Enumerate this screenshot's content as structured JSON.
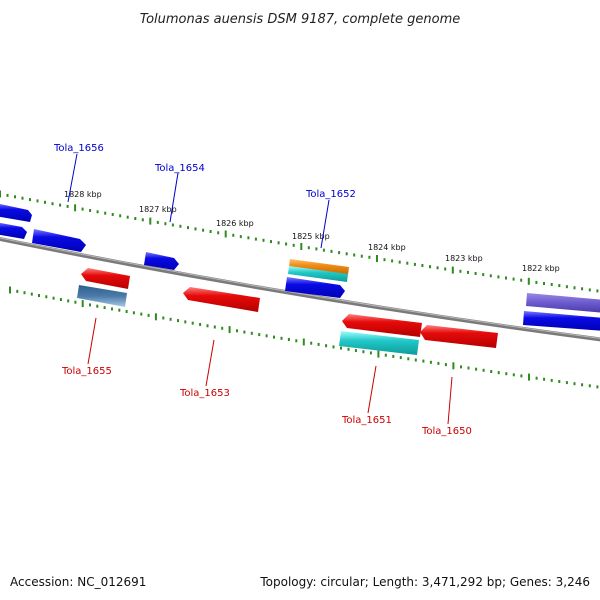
{
  "title": "Tolumonas auensis DSM 9187, complete genome",
  "footer": {
    "accession": "Accession: NC_012691",
    "summary": "Topology: circular; Length: 3,471,292 bp; Genes: 3,246"
  },
  "ruler": {
    "labels": [
      "1828 kbp",
      "1827 kbp",
      "1826 kbp",
      "1825 kbp",
      "1824 kbp",
      "1823 kbp",
      "1822 kbp"
    ],
    "tick_color": "#2e8b1e"
  },
  "gene_labels": {
    "forward": [
      "Tola_1656",
      "Tola_1654",
      "Tola_1652"
    ],
    "reverse": [
      "Tola_1655",
      "Tola_1653",
      "Tola_1651",
      "Tola_1650"
    ]
  },
  "colors": {
    "forward_label": "#0000cc",
    "reverse_label": "#cc0000",
    "backbone": "#888888",
    "gene_blue": "#0a0ae6",
    "gene_red": "#e60a0a",
    "gene_cyan": "#22c8c8",
    "gene_orange": "#f08c14",
    "gene_steel": "#4a7aa8",
    "gene_purple": "#6a5acd"
  }
}
